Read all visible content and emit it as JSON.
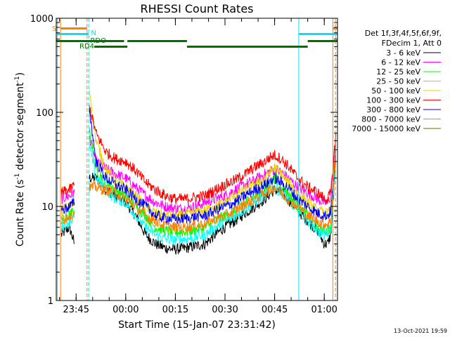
{
  "chart_data": {
    "type": "line",
    "title": "RHESSI Count Rates",
    "xlabel": "Start Time (15-Jan-07 23:31:42)",
    "ylabel_main": "Count Rate (s",
    "ylabel_sup1": "-1",
    "ylabel_mid": " detector segment",
    "ylabel_sup2": "-1",
    "ylabel_end": ")",
    "y_scale": "log",
    "ylim": [
      1,
      1000
    ],
    "xlim_min_from_2330": [
      9.0,
      94.0
    ],
    "y_ticks": [
      {
        "value": 1,
        "label": "1"
      },
      {
        "value": 10,
        "label": "10"
      },
      {
        "value": 100,
        "label": "100"
      },
      {
        "value": 1000,
        "label": "1000"
      }
    ],
    "x_ticks": [
      {
        "minutes": 15,
        "label": "23:45"
      },
      {
        "minutes": 30,
        "label": "00:00"
      },
      {
        "minutes": 45,
        "label": "00:15"
      },
      {
        "minutes": 60,
        "label": "00:30"
      },
      {
        "minutes": 75,
        "label": "00:45"
      },
      {
        "minutes": 90,
        "label": "01:00"
      }
    ],
    "legend_header": [
      "Det 1f,3f,4f,5f,6f,9f,",
      "FDecim 1, Att 0"
    ],
    "series": [
      {
        "name": "3 - 6 keV",
        "color": "#000000",
        "points": [
          [
            10.5,
            5
          ],
          [
            13,
            6
          ],
          [
            14.5,
            4
          ],
          [
            19,
            20
          ],
          [
            21,
            20
          ],
          [
            24,
            15
          ],
          [
            27,
            13
          ],
          [
            30,
            11
          ],
          [
            33,
            8
          ],
          [
            36,
            5
          ],
          [
            39,
            4
          ],
          [
            42,
            3.6
          ],
          [
            45,
            3.5
          ],
          [
            48,
            3.6
          ],
          [
            51,
            3.8
          ],
          [
            54,
            4
          ],
          [
            57,
            5
          ],
          [
            60,
            6
          ],
          [
            63,
            7
          ],
          [
            66,
            8.5
          ],
          [
            69,
            10
          ],
          [
            72,
            12
          ],
          [
            74,
            14
          ],
          [
            75,
            15
          ],
          [
            77,
            14
          ],
          [
            79,
            12
          ],
          [
            82,
            9
          ],
          [
            85,
            7
          ],
          [
            88,
            5.5
          ],
          [
            90,
            4
          ],
          [
            91,
            4
          ],
          [
            92,
            5
          ],
          [
            93.5,
            30
          ]
        ]
      },
      {
        "name": "6 - 12 keV",
        "color": "#ff00ff",
        "points": [
          [
            10.5,
            12
          ],
          [
            13,
            13
          ],
          [
            14.5,
            14
          ],
          [
            19,
            55
          ],
          [
            21,
            30
          ],
          [
            24,
            25
          ],
          [
            27,
            22
          ],
          [
            30,
            20
          ],
          [
            33,
            16
          ],
          [
            36,
            13
          ],
          [
            39,
            11
          ],
          [
            42,
            10
          ],
          [
            45,
            9.5
          ],
          [
            48,
            9.5
          ],
          [
            51,
            10
          ],
          [
            54,
            11
          ],
          [
            57,
            12
          ],
          [
            60,
            13
          ],
          [
            63,
            15
          ],
          [
            66,
            17
          ],
          [
            69,
            19
          ],
          [
            72,
            22
          ],
          [
            74,
            24
          ],
          [
            75,
            25
          ],
          [
            77,
            23
          ],
          [
            79,
            20
          ],
          [
            82,
            16
          ],
          [
            85,
            14
          ],
          [
            88,
            12
          ],
          [
            90,
            11
          ],
          [
            91,
            11
          ],
          [
            92,
            13
          ],
          [
            93.5,
            55
          ]
        ]
      },
      {
        "name": "12 - 25 keV",
        "color": "#00ff00",
        "points": [
          [
            10.5,
            7
          ],
          [
            13,
            8
          ],
          [
            14.5,
            9
          ],
          [
            19,
            65
          ],
          [
            21,
            25
          ],
          [
            24,
            18
          ],
          [
            27,
            15
          ],
          [
            30,
            13
          ],
          [
            33,
            10
          ],
          [
            36,
            8
          ],
          [
            39,
            6
          ],
          [
            42,
            5.5
          ],
          [
            45,
            5.3
          ],
          [
            48,
            5.4
          ],
          [
            51,
            5.6
          ],
          [
            54,
            6
          ],
          [
            57,
            7
          ],
          [
            60,
            8
          ],
          [
            63,
            9
          ],
          [
            66,
            11
          ],
          [
            69,
            13
          ],
          [
            72,
            15
          ],
          [
            74,
            18
          ],
          [
            75,
            20
          ],
          [
            77,
            17
          ],
          [
            79,
            14
          ],
          [
            82,
            10
          ],
          [
            85,
            8
          ],
          [
            88,
            6
          ],
          [
            90,
            5.5
          ],
          [
            91,
            5.5
          ],
          [
            92,
            6
          ],
          [
            93.5,
            35
          ]
        ]
      },
      {
        "name": "25 - 50 keV",
        "color": "#00ffff",
        "points": [
          [
            10.5,
            6
          ],
          [
            13,
            7
          ],
          [
            14.5,
            7.5
          ],
          [
            19,
            45
          ],
          [
            21,
            20
          ],
          [
            24,
            15
          ],
          [
            27,
            12
          ],
          [
            30,
            11
          ],
          [
            33,
            8
          ],
          [
            36,
            6
          ],
          [
            39,
            5
          ],
          [
            42,
            4.5
          ],
          [
            45,
            4.4
          ],
          [
            48,
            4.5
          ],
          [
            51,
            4.7
          ],
          [
            54,
            5
          ],
          [
            57,
            6
          ],
          [
            60,
            7
          ],
          [
            63,
            8
          ],
          [
            66,
            9.5
          ],
          [
            69,
            11
          ],
          [
            72,
            13
          ],
          [
            74,
            15
          ],
          [
            75,
            16
          ],
          [
            77,
            14
          ],
          [
            79,
            12
          ],
          [
            82,
            9
          ],
          [
            85,
            7
          ],
          [
            88,
            5.5
          ],
          [
            90,
            5
          ],
          [
            91,
            5
          ],
          [
            92,
            5.5
          ],
          [
            93.5,
            30
          ]
        ]
      },
      {
        "name": "50 - 100 keV",
        "color": "#e8d000",
        "points": [
          [
            10.5,
            9
          ],
          [
            13,
            10
          ],
          [
            14.5,
            11
          ],
          [
            19,
            180
          ],
          [
            21,
            50
          ],
          [
            24,
            25
          ],
          [
            27,
            18
          ],
          [
            30,
            16
          ],
          [
            33,
            13
          ],
          [
            36,
            10
          ],
          [
            39,
            8.5
          ],
          [
            42,
            8
          ],
          [
            45,
            7.8
          ],
          [
            48,
            8
          ],
          [
            51,
            8.5
          ],
          [
            54,
            9
          ],
          [
            57,
            10
          ],
          [
            60,
            11
          ],
          [
            63,
            13
          ],
          [
            66,
            15
          ],
          [
            69,
            17
          ],
          [
            72,
            20
          ],
          [
            74,
            24
          ],
          [
            75,
            26
          ],
          [
            77,
            22
          ],
          [
            79,
            18
          ],
          [
            82,
            14
          ],
          [
            85,
            11
          ],
          [
            88,
            9
          ],
          [
            90,
            8.5
          ],
          [
            91,
            8.5
          ],
          [
            92,
            9
          ],
          [
            93.5,
            45
          ]
        ]
      },
      {
        "name": "100 - 300 keV",
        "color": "#ff0000",
        "points": [
          [
            10.5,
            14
          ],
          [
            13,
            15
          ],
          [
            14.5,
            17
          ],
          [
            19,
            115
          ],
          [
            21,
            60
          ],
          [
            24,
            38
          ],
          [
            27,
            32
          ],
          [
            30,
            30
          ],
          [
            33,
            24
          ],
          [
            36,
            18
          ],
          [
            39,
            15
          ],
          [
            42,
            13
          ],
          [
            45,
            12
          ],
          [
            48,
            12
          ],
          [
            51,
            12.5
          ],
          [
            54,
            13
          ],
          [
            57,
            15
          ],
          [
            60,
            17
          ],
          [
            63,
            19
          ],
          [
            66,
            22
          ],
          [
            69,
            26
          ],
          [
            72,
            30
          ],
          [
            74,
            34
          ],
          [
            75,
            35
          ],
          [
            77,
            32
          ],
          [
            79,
            27
          ],
          [
            82,
            20
          ],
          [
            85,
            16
          ],
          [
            88,
            14
          ],
          [
            90,
            12
          ],
          [
            91,
            12
          ],
          [
            92,
            14
          ],
          [
            93.5,
            60
          ]
        ]
      },
      {
        "name": "300 - 800 keV",
        "color": "#0000ff",
        "points": [
          [
            10.5,
            9
          ],
          [
            13,
            10
          ],
          [
            14.5,
            11
          ],
          [
            19,
            110
          ],
          [
            21,
            30
          ],
          [
            24,
            20
          ],
          [
            27,
            17
          ],
          [
            30,
            15
          ],
          [
            33,
            12
          ],
          [
            36,
            10
          ],
          [
            39,
            8
          ],
          [
            42,
            7.5
          ],
          [
            45,
            7.3
          ],
          [
            48,
            7.4
          ],
          [
            51,
            7.7
          ],
          [
            54,
            8
          ],
          [
            57,
            9
          ],
          [
            60,
            10
          ],
          [
            63,
            11
          ],
          [
            66,
            13
          ],
          [
            69,
            15
          ],
          [
            72,
            17
          ],
          [
            74,
            19
          ],
          [
            75,
            20
          ],
          [
            77,
            18
          ],
          [
            79,
            16
          ],
          [
            82,
            12
          ],
          [
            85,
            10
          ],
          [
            88,
            8.5
          ],
          [
            90,
            8
          ],
          [
            91,
            8
          ],
          [
            92,
            9
          ],
          [
            93.5,
            40
          ]
        ]
      },
      {
        "name": "800 - 7000 keV",
        "color": "#ff8000",
        "points": [
          [
            10.5,
            7
          ],
          [
            13,
            8
          ],
          [
            14.5,
            8.5
          ],
          [
            19,
            16
          ],
          [
            21,
            16
          ],
          [
            24,
            15
          ],
          [
            27,
            14
          ],
          [
            30,
            12
          ],
          [
            33,
            10
          ],
          [
            36,
            8
          ],
          [
            39,
            7
          ],
          [
            42,
            6.2
          ],
          [
            45,
            6
          ],
          [
            48,
            6
          ],
          [
            51,
            6.3
          ],
          [
            54,
            6.6
          ],
          [
            57,
            7.3
          ],
          [
            60,
            8
          ],
          [
            63,
            9
          ],
          [
            66,
            10.5
          ],
          [
            69,
            12
          ],
          [
            72,
            14
          ],
          [
            74,
            15
          ],
          [
            75,
            16
          ],
          [
            77,
            14
          ],
          [
            79,
            12
          ],
          [
            82,
            10
          ],
          [
            85,
            8
          ],
          [
            88,
            7
          ],
          [
            90,
            6.5
          ],
          [
            91,
            6.5
          ],
          [
            92,
            7
          ],
          [
            93.5,
            35
          ]
        ]
      },
      {
        "name": "7000 - 15000 keV",
        "color": "#806000",
        "points": []
      }
    ],
    "attenuator_labels": [
      "S",
      "N",
      "RDO",
      "RD4"
    ],
    "footer_date": "13-Oct-2021 19:59"
  }
}
